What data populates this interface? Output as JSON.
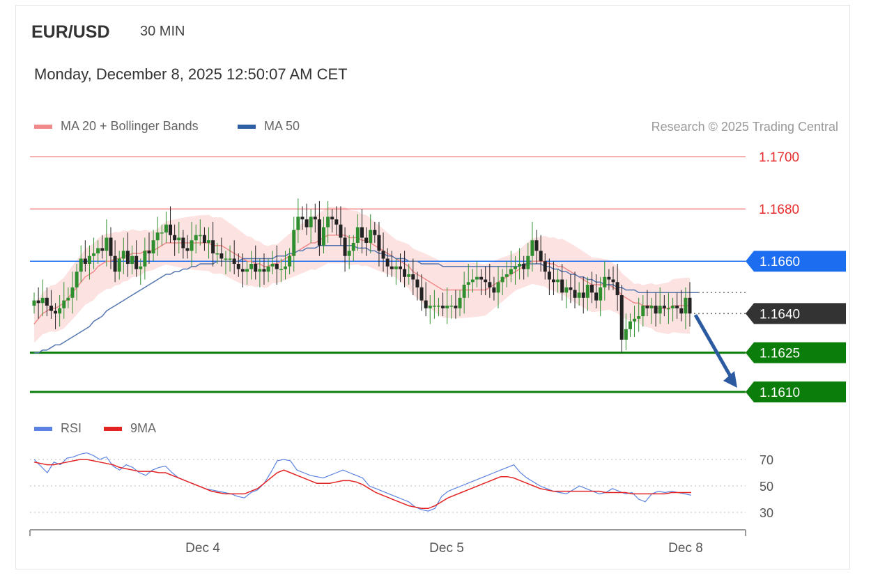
{
  "header": {
    "symbol": "EUR/USD",
    "timeframe": "30 MIN",
    "datetime": "Monday, December 8, 2025 12:50:07 AM CET"
  },
  "legend": {
    "ma20_label": "MA 20 + Bollinger Bands",
    "ma20_color": "#f08a8a",
    "ma50_label": "MA 50",
    "ma50_color": "#2e5fa3",
    "rsi_label": "RSI",
    "rsi_color": "#5b82e0",
    "ma9_label": "9MA",
    "ma9_color": "#e32222"
  },
  "credit": "Research © 2025 Trading Central",
  "chart_data": {
    "type": "candlestick",
    "price_range": [
      1.1617,
      1.1705
    ],
    "levels": [
      {
        "value": 1.17,
        "label": "1.1700",
        "kind": "resistance",
        "color": "#e62e2e"
      },
      {
        "value": 1.168,
        "label": "1.1680",
        "kind": "resistance",
        "color": "#e62e2e"
      },
      {
        "value": 1.166,
        "label": "1.1660",
        "kind": "pivot",
        "color": "#1c6df0"
      },
      {
        "value": 1.164,
        "label": "1.1640",
        "kind": "last",
        "color": "#333333"
      },
      {
        "value": 1.1625,
        "label": "1.1625",
        "kind": "support",
        "color": "#0a7d0a"
      },
      {
        "value": 1.161,
        "label": "1.1610",
        "kind": "support",
        "color": "#0a7d0a"
      }
    ],
    "close": [
      1.1645,
      1.1644,
      1.1646,
      1.1643,
      1.1641,
      1.164,
      1.1642,
      1.1645,
      1.1646,
      1.165,
      1.1656,
      1.1661,
      1.1659,
      1.1662,
      1.1663,
      1.1665,
      1.1664,
      1.1669,
      1.1662,
      1.1656,
      1.1661,
      1.1664,
      1.1659,
      1.1662,
      1.1657,
      1.1658,
      1.1664,
      1.1663,
      1.1668,
      1.1671,
      1.1671,
      1.1674,
      1.167,
      1.1668,
      1.1669,
      1.1665,
      1.1664,
      1.1668,
      1.167,
      1.167,
      1.1667,
      1.1668,
      1.1663,
      1.1663,
      1.1661,
      1.1661,
      1.1661,
      1.1659,
      1.1657,
      1.1656,
      1.1657,
      1.1659,
      1.1656,
      1.1657,
      1.1656,
      1.1658,
      1.1659,
      1.1657,
      1.1657,
      1.1658,
      1.1662,
      1.1672,
      1.1677,
      1.1676,
      1.1673,
      1.1677,
      1.1676,
      1.1666,
      1.1673,
      1.1677,
      1.1676,
      1.1674,
      1.1669,
      1.1662,
      1.1664,
      1.1667,
      1.1673,
      1.1669,
      1.1667,
      1.1672,
      1.167,
      1.1664,
      1.1661,
      1.1658,
      1.1657,
      1.1658,
      1.1657,
      1.1654,
      1.1655,
      1.1653,
      1.165,
      1.1645,
      1.1642,
      1.1643,
      1.1643,
      1.1643,
      1.1642,
      1.1643,
      1.1643,
      1.1642,
      1.1646,
      1.1651,
      1.1652,
      1.1653,
      1.1654,
      1.1653,
      1.1652,
      1.165,
      1.1648,
      1.1652,
      1.1654,
      1.1655,
      1.1657,
      1.1658,
      1.1659,
      1.1657,
      1.1662,
      1.1668,
      1.1664,
      1.166,
      1.1656,
      1.1653,
      1.1652,
      1.1653,
      1.1648,
      1.165,
      1.1649,
      1.1646,
      1.1648,
      1.1646,
      1.1651,
      1.1648,
      1.1645,
      1.165,
      1.1654,
      1.1653,
      1.1652,
      1.1647,
      1.163,
      1.1634,
      1.1637,
      1.1638,
      1.1639,
      1.1643,
      1.1642,
      1.1643,
      1.164,
      1.1643,
      1.1642,
      1.1642,
      1.1643,
      1.1642,
      1.164,
      1.1646,
      1.164
    ],
    "ma20": [
      1.1636,
      1.1638,
      1.164,
      1.1641,
      1.1642,
      1.1642,
      1.1643,
      1.1644,
      1.1646,
      1.1648,
      1.165,
      1.1652,
      1.1654,
      1.1655,
      1.1656,
      1.1658,
      1.1659,
      1.166,
      1.166,
      1.1661,
      1.1661,
      1.1662,
      1.1662,
      1.1663,
      1.1663,
      1.1663,
      1.1664,
      1.1664,
      1.1664,
      1.1665,
      1.1666,
      1.1667,
      1.1667,
      1.1667,
      1.1667,
      1.1667,
      1.1667,
      1.1667,
      1.1667,
      1.1667,
      1.1667,
      1.1667,
      1.1666,
      1.1666,
      1.1666,
      1.1665,
      1.1664,
      1.1663,
      1.1662,
      1.1661,
      1.166,
      1.166,
      1.1659,
      1.1659,
      1.1658,
      1.1658,
      1.1659,
      1.1659,
      1.166,
      1.1661,
      1.1662,
      1.1663,
      1.1664,
      1.1665,
      1.1666,
      1.1667,
      1.1667,
      1.1668,
      1.1669,
      1.167,
      1.167,
      1.167,
      1.167,
      1.167,
      1.1669,
      1.1669,
      1.1669,
      1.1668,
      1.1668,
      1.1667,
      1.1666,
      1.1665,
      1.1664,
      1.1663,
      1.1662,
      1.1661,
      1.166,
      1.1659,
      1.1658,
      1.1656,
      1.1655,
      1.1654,
      1.1653,
      1.1652,
      1.1651,
      1.165,
      1.1649,
      1.1649,
      1.1649,
      1.1649,
      1.1649,
      1.1649,
      1.1649,
      1.1649,
      1.1649,
      1.1649,
      1.1649,
      1.165,
      1.1651,
      1.1652,
      1.1653,
      1.1654,
      1.1655,
      1.1656,
      1.1657,
      1.1658,
      1.1659,
      1.166,
      1.166,
      1.166,
      1.166,
      1.1659,
      1.1659,
      1.1658,
      1.1658,
      1.1657,
      1.1656,
      1.1655,
      1.1654,
      1.1653,
      1.1652,
      1.1651,
      1.1651,
      1.1651,
      1.1651,
      1.1651,
      1.165,
      1.1649,
      1.1647,
      1.1646,
      1.1645,
      1.1644,
      1.1644,
      1.1643,
      1.1643,
      1.1643,
      1.1642,
      1.1642,
      1.1642,
      1.1642,
      1.1643,
      1.1643,
      1.1643,
      1.1643,
      1.1643
    ],
    "ma50": [
      1.1625,
      1.1625,
      1.1626,
      1.1626,
      1.1627,
      1.1628,
      1.1628,
      1.1629,
      1.163,
      1.1631,
      1.1632,
      1.1633,
      1.1634,
      1.1635,
      1.1637,
      1.1638,
      1.1639,
      1.1641,
      1.1642,
      1.1643,
      1.1644,
      1.1645,
      1.1646,
      1.1647,
      1.1648,
      1.1649,
      1.165,
      1.1651,
      1.1652,
      1.1653,
      1.1654,
      1.1655,
      1.1655,
      1.1656,
      1.1656,
      1.1657,
      1.1657,
      1.1658,
      1.1658,
      1.1659,
      1.1659,
      1.1659,
      1.1659,
      1.166,
      1.166,
      1.166,
      1.166,
      1.166,
      1.166,
      1.1661,
      1.1661,
      1.1661,
      1.1661,
      1.1661,
      1.1661,
      1.1661,
      1.1661,
      1.1662,
      1.1662,
      1.1662,
      1.1663,
      1.1663,
      1.1664,
      1.1664,
      1.1665,
      1.1665,
      1.1665,
      1.1666,
      1.1666,
      1.1666,
      1.1666,
      1.1666,
      1.1666,
      1.1666,
      1.1666,
      1.1666,
      1.1665,
      1.1665,
      1.1665,
      1.1664,
      1.1664,
      1.1663,
      1.1663,
      1.1662,
      1.1662,
      1.1661,
      1.1661,
      1.1661,
      1.166,
      1.166,
      1.166,
      1.1659,
      1.1659,
      1.1659,
      1.1659,
      1.1659,
      1.1658,
      1.1658,
      1.1658,
      1.1658,
      1.1658,
      1.1658,
      1.1658,
      1.1658,
      1.1658,
      1.1658,
      1.1658,
      1.1658,
      1.1658,
      1.1658,
      1.1658,
      1.1658,
      1.1658,
      1.1658,
      1.1658,
      1.1659,
      1.1659,
      1.1659,
      1.1659,
      1.1659,
      1.1658,
      1.1658,
      1.1657,
      1.1657,
      1.1656,
      1.1656,
      1.1655,
      1.1655,
      1.1654,
      1.1654,
      1.1653,
      1.1653,
      1.1652,
      1.1652,
      1.1651,
      1.1651,
      1.1651,
      1.165,
      1.165,
      1.1649,
      1.1649,
      1.1649,
      1.1648,
      1.1648,
      1.1648,
      1.1648,
      1.1648,
      1.1648,
      1.1648,
      1.1648,
      1.1648,
      1.1648,
      1.1648,
      1.1648,
      1.1648,
      1.1648,
      1.1648
    ],
    "bb_width": 0.0009,
    "forecast": {
      "from": 1.164,
      "to": 1.161
    },
    "rsi": {
      "range": [
        20,
        80
      ],
      "levels": [
        70,
        50,
        30
      ],
      "rsi": [
        70,
        65,
        60,
        68,
        66,
        71,
        72,
        74,
        75,
        73,
        70,
        72,
        65,
        62,
        66,
        64,
        60,
        58,
        62,
        64,
        65,
        60,
        56,
        54,
        52,
        50,
        48,
        47,
        46,
        45,
        44,
        42,
        41,
        45,
        47,
        52,
        60,
        69,
        70,
        69,
        62,
        60,
        58,
        57,
        56,
        58,
        60,
        62,
        60,
        58,
        56,
        50,
        48,
        46,
        44,
        42,
        40,
        38,
        34,
        32,
        31,
        33,
        42,
        46,
        48,
        50,
        52,
        54,
        56,
        58,
        60,
        62,
        64,
        66,
        60,
        56,
        53,
        50,
        48,
        46,
        45,
        44,
        47,
        50,
        48,
        46,
        44,
        45,
        48,
        46,
        44,
        45,
        40,
        38,
        44,
        46,
        45,
        46,
        45,
        44,
        43
      ],
      "ma9": [
        68,
        67,
        66,
        66,
        67,
        68,
        69,
        70,
        70,
        69,
        68,
        67,
        66,
        64,
        63,
        62,
        61,
        61,
        61,
        60,
        60,
        58,
        56,
        54,
        52,
        50,
        48,
        46,
        45,
        44,
        44,
        44,
        44,
        46,
        48,
        52,
        56,
        60,
        62,
        60,
        58,
        56,
        54,
        52,
        52,
        52,
        53,
        54,
        54,
        53,
        51,
        48,
        45,
        43,
        41,
        39,
        37,
        35,
        34,
        33,
        33,
        35,
        38,
        41,
        43,
        45,
        47,
        49,
        51,
        53,
        55,
        57,
        57,
        56,
        54,
        52,
        50,
        48,
        47,
        46,
        46,
        46,
        46,
        46,
        46,
        46,
        46,
        45,
        45,
        45,
        45,
        44,
        44,
        44,
        44,
        44,
        44,
        45,
        45,
        45,
        45
      ]
    },
    "x_tick_labels": [
      "Dec 4",
      "Dec 5",
      "Dec 8"
    ],
    "y_tick_labels": [
      "1.1700",
      "1.1680",
      "1.1660",
      "1.1640",
      "1.1625",
      "1.1610"
    ],
    "rsi_tick_labels": [
      "70",
      "50",
      "30"
    ]
  }
}
